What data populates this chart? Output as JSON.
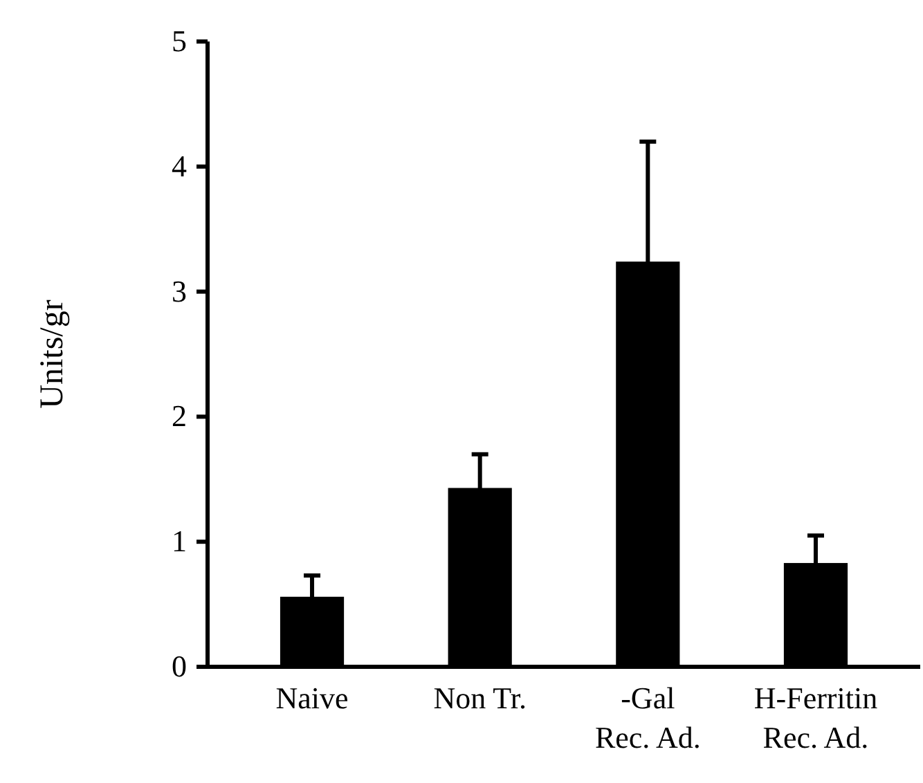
{
  "chart_data": {
    "type": "bar",
    "ylabel": "Units/gr",
    "categories": [
      "Naive",
      "Non Tr.",
      "-Gal\nRec. Ad.",
      "H-Ferritin\nRec. Ad."
    ],
    "values": [
      0.56,
      1.43,
      3.24,
      0.83
    ],
    "errors": [
      0.17,
      0.27,
      0.96,
      0.22
    ],
    "color": "#000000",
    "ylim": [
      0,
      5
    ],
    "yticks": [
      0,
      1,
      2,
      3,
      4,
      5
    ],
    "grid": false
  }
}
